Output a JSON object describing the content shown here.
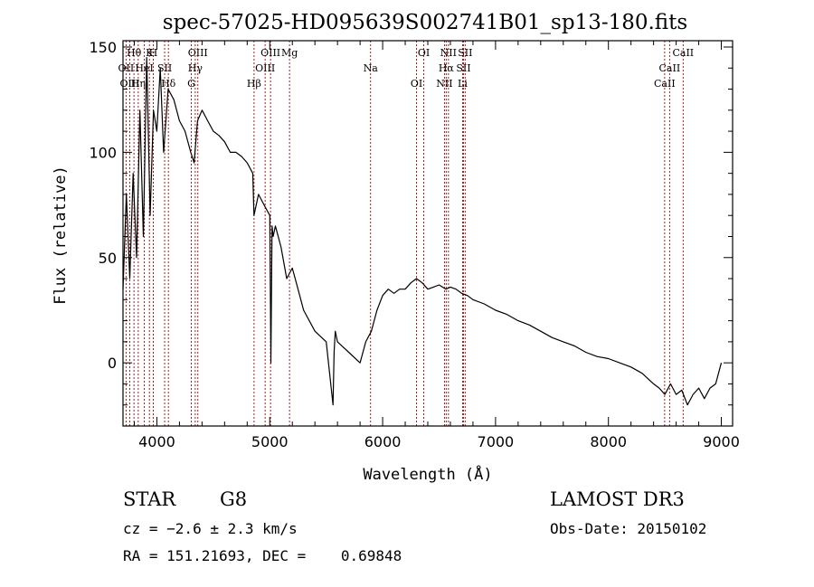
{
  "chart_data": {
    "type": "line",
    "title": "spec-57025-HD095639S002741B01_sp13-180.fits",
    "xlabel": "Wavelength (Å)",
    "ylabel": "Flux (relative)",
    "xlim": [
      3700,
      9100
    ],
    "ylim": [
      -30,
      153
    ],
    "xticks": [
      4000,
      5000,
      6000,
      7000,
      8000,
      9000
    ],
    "yticks": [
      0,
      50,
      100,
      150
    ],
    "grid": false,
    "series": [
      {
        "color": "#000000",
        "x": [
          3700,
          3730,
          3760,
          3790,
          3820,
          3850,
          3880,
          3910,
          3940,
          3970,
          4000,
          4030,
          4060,
          4100,
          4150,
          4200,
          4250,
          4300,
          4330,
          4360,
          4400,
          4450,
          4500,
          4550,
          4600,
          4650,
          4700,
          4750,
          4800,
          4850,
          4860,
          4900,
          4950,
          5000,
          5010,
          5020,
          5030,
          5050,
          5100,
          5150,
          5200,
          5250,
          5300,
          5400,
          5500,
          5560,
          5570,
          5580,
          5600,
          5700,
          5800,
          5850,
          5900,
          5950,
          6000,
          6050,
          6100,
          6150,
          6200,
          6250,
          6300,
          6350,
          6400,
          6450,
          6500,
          6560,
          6600,
          6650,
          6700,
          6750,
          6800,
          6900,
          7000,
          7100,
          7200,
          7300,
          7400,
          7500,
          7600,
          7700,
          7800,
          7900,
          8000,
          8100,
          8200,
          8300,
          8400,
          8450,
          8500,
          8550,
          8600,
          8650,
          8700,
          8750,
          8800,
          8850,
          8900,
          8950,
          9000
        ],
        "y": [
          35,
          80,
          40,
          90,
          50,
          120,
          60,
          145,
          70,
          120,
          110,
          140,
          100,
          130,
          125,
          115,
          110,
          100,
          95,
          115,
          120,
          115,
          110,
          108,
          105,
          100,
          100,
          98,
          95,
          90,
          70,
          80,
          75,
          70,
          0,
          65,
          60,
          65,
          55,
          40,
          45,
          35,
          25,
          15,
          10,
          -20,
          5,
          15,
          10,
          5,
          0,
          10,
          15,
          25,
          32,
          35,
          33,
          35,
          35,
          38,
          40,
          38,
          35,
          36,
          37,
          35,
          36,
          35,
          33,
          32,
          30,
          28,
          25,
          23,
          20,
          18,
          15,
          12,
          10,
          8,
          5,
          3,
          2,
          0,
          -2,
          -5,
          -10,
          -12,
          -15,
          -10,
          -15,
          -13,
          -20,
          -15,
          -12,
          -17,
          -12,
          -10,
          0
        ]
      }
    ],
    "line_markers": [
      {
        "label": "Hθ",
        "wavelength": 3797
      },
      {
        "label": "OII",
        "wavelength": 3727
      },
      {
        "label": "OIII",
        "wavelength": 3760
      },
      {
        "label": "K",
        "wavelength": 3934
      },
      {
        "label": "HeI",
        "wavelength": 3889
      },
      {
        "label": "Hη",
        "wavelength": 3835
      },
      {
        "label": "H",
        "wavelength": 3968
      },
      {
        "label": "SII",
        "wavelength": 4069
      },
      {
        "label": "Hδ",
        "wavelength": 4102
      },
      {
        "label": "OIII",
        "wavelength": 4363
      },
      {
        "label": "Hγ",
        "wavelength": 4340
      },
      {
        "label": "G",
        "wavelength": 4305
      },
      {
        "label": "OIII",
        "wavelength": 5007
      },
      {
        "label": "OIII",
        "wavelength": 4959
      },
      {
        "label": "Hβ",
        "wavelength": 4861
      },
      {
        "label": "Mg",
        "wavelength": 5175
      },
      {
        "label": "Na",
        "wavelength": 5893
      },
      {
        "label": "OI",
        "wavelength": 6300
      },
      {
        "label": "OI",
        "wavelength": 6364
      },
      {
        "label": "Hα",
        "wavelength": 6563
      },
      {
        "label": "NII",
        "wavelength": 6548
      },
      {
        "label": "NII",
        "wavelength": 6583
      },
      {
        "label": "SII",
        "wavelength": 6716
      },
      {
        "label": "Li",
        "wavelength": 6708
      },
      {
        "label": "SII",
        "wavelength": 6731
      },
      {
        "label": "CaII",
        "wavelength": 8542
      },
      {
        "label": "CaII",
        "wavelength": 8498
      },
      {
        "label": "CaII",
        "wavelength": 8662
      }
    ]
  },
  "info": {
    "object_class": "STAR",
    "subclass": "G8",
    "survey": "LAMOST DR3",
    "cz": "cz = −2.6 ± 2.3 km/s",
    "obs_date": "Obs-Date: 20150102",
    "coords": "RA = 151.21693, DEC =    0.69848"
  },
  "colors": {
    "spectrum": "#000000",
    "marker": "#aa0000",
    "text": "#000000"
  }
}
